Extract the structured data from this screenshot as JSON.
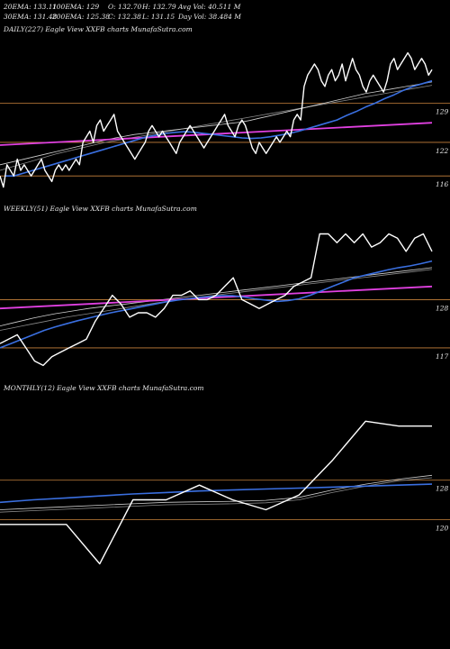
{
  "header": {
    "row1": {
      "ema20": "20EMA: 133.11",
      "ema100": "100EMA: 129",
      "open": "O: 132.70",
      "high": "H: 132.79",
      "avgvol": "Avg Vol: 40.511 M"
    },
    "row2": {
      "ema30": "30EMA: 131.48",
      "ema200": "200EMA: 125.38",
      "close": "C: 132.38",
      "low": "L: 131.15",
      "dayvol": "Day Vol: 38.484  M"
    }
  },
  "panels": [
    {
      "title": "DAILY(227) Eagle   View  XXFB charts MunafaSutra.com"
    },
    {
      "title": "WEEKLY(51) Eagle   View  XXFB charts MunafaSutra.com"
    },
    {
      "title": "MONTHLY(12) Eagle   View  XXFB charts MunafaSutra.com"
    }
  ],
  "colors": {
    "background": "#000000",
    "price": "#ffffff",
    "ema_fast": "#3a6fe0",
    "ema_slow": "#cfcfcf",
    "trend": "#e040e0",
    "level": "#c8823c"
  },
  "chart_data": [
    {
      "type": "line",
      "title": "DAILY(227) Eagle   View  XXFB charts MunafaSutra.com",
      "ylim": [
        112,
        141
      ],
      "levels": [
        129,
        122,
        116
      ],
      "level_labels": [
        "129",
        "122",
        "116"
      ],
      "series": [
        {
          "role": "price",
          "values": [
            116,
            114,
            118,
            117,
            116,
            119,
            117,
            118,
            117,
            116,
            117,
            118,
            119,
            117,
            116,
            115,
            117,
            118,
            117,
            118,
            117,
            118,
            119,
            118,
            122,
            123,
            124,
            122,
            125,
            126,
            124,
            125,
            126,
            127,
            124,
            123,
            122,
            121,
            120,
            119,
            120,
            121,
            122,
            124,
            125,
            124,
            123,
            124,
            123,
            122,
            121,
            120,
            122,
            123,
            124,
            125,
            124,
            123,
            122,
            121,
            122,
            123,
            124,
            125,
            126,
            127,
            125,
            124,
            123,
            125,
            126,
            125,
            123,
            121,
            120,
            122,
            121,
            120,
            121,
            122,
            123,
            122,
            123,
            124,
            123,
            126,
            127,
            126,
            132,
            134,
            135,
            136,
            135,
            133,
            132,
            134,
            135,
            133,
            134,
            136,
            133,
            135,
            137,
            135,
            134,
            132,
            131,
            133,
            134,
            133,
            132,
            131,
            133,
            136,
            137,
            135,
            136,
            137,
            138,
            137,
            135,
            136,
            137,
            136,
            134,
            135
          ]
        },
        {
          "role": "ema_fast",
          "values": [
            116,
            116,
            116.5,
            117,
            117.5,
            118,
            118.5,
            119,
            119.5,
            120,
            120.5,
            121,
            121.5,
            122,
            122.5,
            123,
            123.3,
            123.6,
            123.8,
            123.9,
            123.8,
            123.6,
            123.4,
            123.2,
            123,
            122.8,
            122.7,
            122.8,
            123,
            123.3,
            123.6,
            124,
            124.5,
            125,
            125.5,
            126,
            126.8,
            127.5,
            128.3,
            129,
            129.8,
            130.5,
            131.3,
            132,
            132.5,
            133
          ]
        },
        {
          "role": "ema_slow",
          "values": [
            118,
            118.4,
            118.8,
            119.2,
            119.6,
            120,
            120.4,
            120.8,
            121.2,
            121.6,
            122,
            122.4,
            122.8,
            123.1,
            123.4,
            123.6,
            123.8,
            124,
            124.2,
            124.4,
            124.6,
            124.8,
            125,
            125.2,
            125.4,
            125.6,
            125.9,
            126.3,
            126.7,
            127.1,
            127.5,
            127.9,
            128.3,
            128.7,
            129.1,
            129.5,
            129.9,
            130.3,
            130.7,
            131,
            131.3,
            131.6,
            131.9,
            132.2,
            132.5,
            132.8
          ]
        },
        {
          "role": "ema_slow2",
          "values": [
            117,
            117.5,
            118,
            118.5,
            119,
            119.5,
            120,
            120.4,
            120.8,
            121.2,
            121.6,
            122,
            122.3,
            122.6,
            122.9,
            123.2,
            123.5,
            123.8,
            124.1,
            124.4,
            124.7,
            125,
            125.3,
            125.6,
            125.9,
            126.2,
            126.5,
            126.8,
            127.1,
            127.4,
            127.7,
            128,
            128.3,
            128.6,
            128.9,
            129.2,
            129.5,
            129.8,
            130.1,
            130.4,
            130.7,
            131,
            131.3,
            131.6,
            131.9,
            132.2
          ]
        },
        {
          "role": "trend",
          "values": [
            121.5,
            125.5
          ]
        }
      ]
    },
    {
      "type": "line",
      "title": "WEEKLY(51) Eagle   View  XXFB charts MunafaSutra.com",
      "ylim": [
        110,
        147
      ],
      "levels": [
        128,
        117
      ],
      "level_labels": [
        "128",
        "117"
      ],
      "series": [
        {
          "role": "price",
          "values": [
            118,
            119,
            120,
            117,
            114,
            113,
            115,
            116,
            117,
            118,
            119,
            123,
            126,
            129,
            127,
            124,
            125,
            125,
            124,
            126,
            129,
            129,
            130,
            128,
            128,
            129,
            131,
            133,
            128,
            127,
            126,
            127,
            128,
            129,
            131,
            132,
            133,
            143,
            143,
            141,
            143,
            141,
            143,
            140,
            141,
            143,
            142,
            139,
            142,
            143,
            139
          ]
        },
        {
          "role": "ema_fast",
          "values": [
            117,
            118,
            119,
            120,
            121,
            121.8,
            122.5,
            123.2,
            123.8,
            124.4,
            125,
            125.5,
            126,
            126.5,
            127,
            127.5,
            127.9,
            128.2,
            128.5,
            128.7,
            128.9,
            128.9,
            128.6,
            128.2,
            127.9,
            127.6,
            127.8,
            128.2,
            129,
            130,
            131,
            132,
            133,
            133.6,
            134.2,
            134.8,
            135.3,
            135.7,
            136.2,
            136.8
          ]
        },
        {
          "role": "ema_slow",
          "values": [
            122,
            122.6,
            123.2,
            123.8,
            124.3,
            124.8,
            125.2,
            125.6,
            126,
            126.3,
            126.6,
            126.9,
            127.2,
            127.5,
            127.8,
            128.1,
            128.4,
            128.7,
            129,
            129.3,
            129.6,
            129.9,
            130.2,
            130.5,
            130.8,
            131.1,
            131.4,
            131.7,
            132,
            132.3,
            132.6,
            132.9,
            133.2,
            133.5,
            133.8,
            134.1,
            134.4,
            134.7,
            135,
            135.3
          ]
        },
        {
          "role": "ema_slow2",
          "values": [
            121,
            121.5,
            122,
            122.5,
            123,
            123.5,
            124,
            124.4,
            124.8,
            125.2,
            125.6,
            126,
            126.4,
            126.8,
            127.2,
            127.6,
            128,
            128.3,
            128.6,
            128.9,
            129.2,
            129.5,
            129.8,
            130.1,
            130.4,
            130.7,
            131,
            131.3,
            131.6,
            131.9,
            132.2,
            132.5,
            132.8,
            133.1,
            133.4,
            133.7,
            134,
            134.3,
            134.6,
            134.9
          ]
        },
        {
          "role": "trend",
          "values": [
            126,
            131
          ]
        }
      ]
    },
    {
      "type": "line",
      "title": "MONTHLY(12) Eagle   View  XXFB charts MunafaSutra.com",
      "ylim": [
        112,
        145
      ],
      "levels": [
        128,
        120
      ],
      "level_labels": [
        "128",
        "120"
      ],
      "series": [
        {
          "role": "price",
          "values": [
            119,
            119,
            119,
            111,
            124,
            124,
            127,
            124,
            122,
            125,
            132,
            140,
            139,
            139
          ]
        },
        {
          "role": "ema_fast",
          "values": [
            123.5,
            124,
            124.4,
            124.8,
            125.2,
            125.5,
            125.8,
            126,
            126.2,
            126.4,
            126.6,
            126.8,
            127.0,
            127.2
          ]
        },
        {
          "role": "ema_slow",
          "values": [
            122,
            122.3,
            122.6,
            122.9,
            123.2,
            123.5,
            123.6,
            123.7,
            123.9,
            124.5,
            126,
            127.2,
            128.2,
            129
          ]
        },
        {
          "role": "ema_slow2",
          "values": [
            121.5,
            121.8,
            122.1,
            122.4,
            122.7,
            123,
            123.1,
            123.2,
            123.4,
            124,
            125.5,
            126.8,
            127.9,
            128.5
          ]
        }
      ]
    }
  ]
}
